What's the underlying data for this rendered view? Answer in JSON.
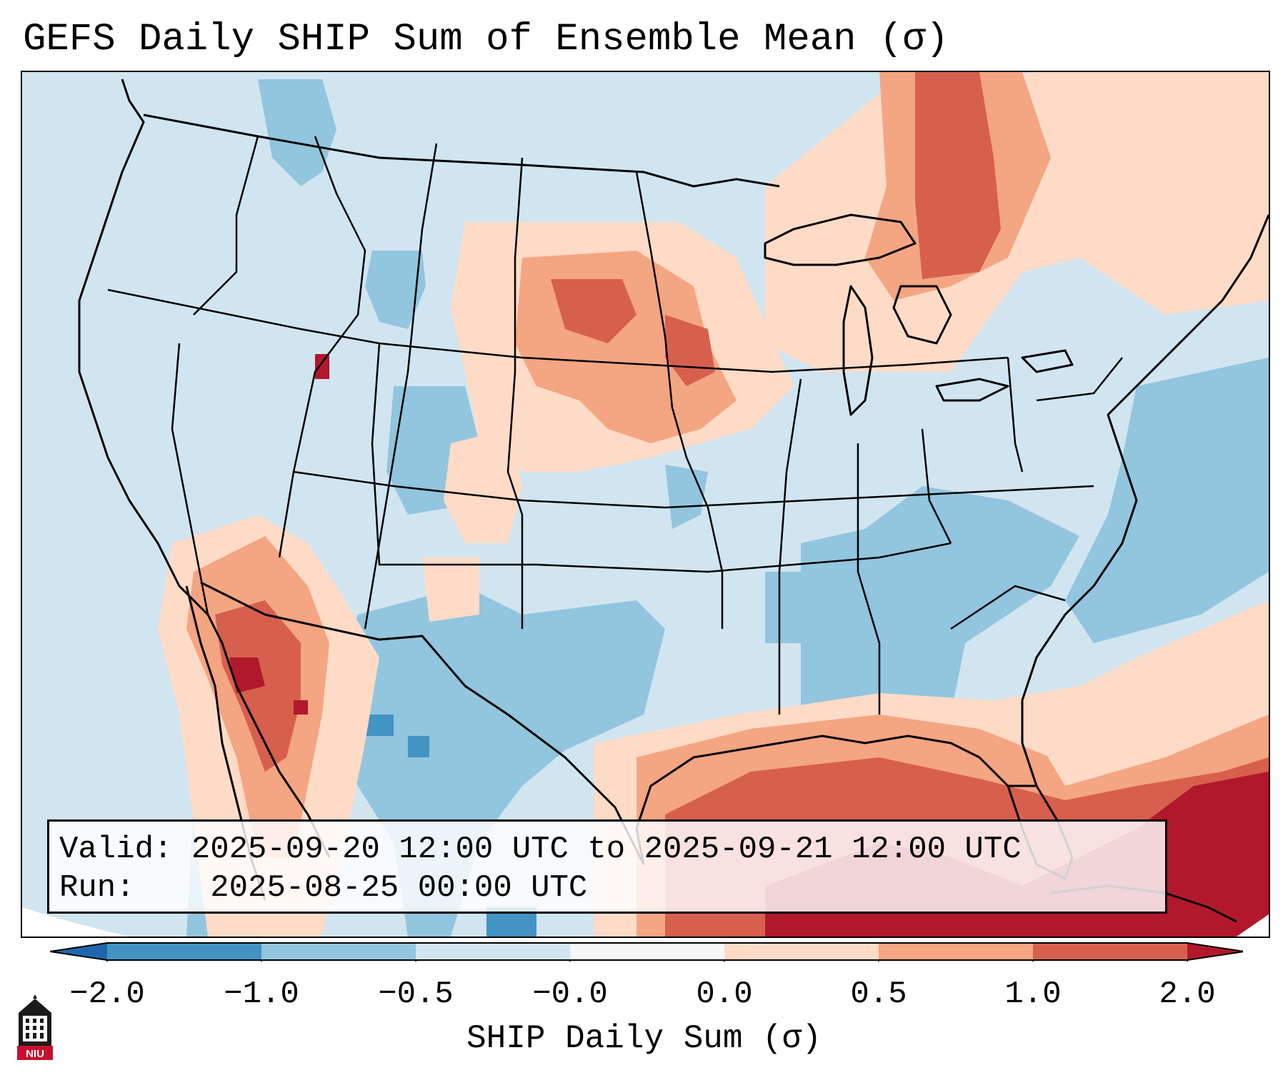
{
  "title": "GEFS Daily SHIP Sum of Ensemble Mean (σ)",
  "info": {
    "valid_label": "Valid:",
    "valid_value": "2025-09-20 12:00 UTC to 2025-09-21 12:00 UTC",
    "run_label": "Run:",
    "run_value": "2025-08-25 00:00 UTC"
  },
  "colorbar": {
    "label": "SHIP Daily Sum (σ)",
    "ticks": [
      "−2.0",
      "−1.0",
      "−0.5",
      "−0.0",
      "0.0",
      "0.5",
      "1.0",
      "2.0"
    ],
    "bins": [
      {
        "range": "< -2.0",
        "color": "#2166ac"
      },
      {
        "range": "-2.0 to -1.0",
        "color": "#4393c3"
      },
      {
        "range": "-1.0 to -0.5",
        "color": "#92c5de"
      },
      {
        "range": "-0.5 to -0.0",
        "color": "#d1e5f0"
      },
      {
        "range": "-0.0 to 0.0",
        "color": "#f7f7f7"
      },
      {
        "range": "0.0 to 0.5",
        "color": "#fddbc7"
      },
      {
        "range": "0.5 to 1.0",
        "color": "#f4a582"
      },
      {
        "range": "1.0 to 2.0",
        "color": "#d6604d"
      },
      {
        "range": "> 2.0",
        "color": "#b2182b"
      }
    ]
  },
  "regions": [
    {
      "name": "upper-midwest-positive",
      "value_range": "0.5 to 2.0"
    },
    {
      "name": "southwest-mexico-positive",
      "value_range": "0.5 to 2.0"
    },
    {
      "name": "gulf-caribbean-positive",
      "value_range": "> 2.0"
    },
    {
      "name": "atlantic-southeast-positive",
      "value_range": "0.0 to 2.0"
    },
    {
      "name": "southeast-us-negative",
      "value_range": "-1.0 to -0.5"
    },
    {
      "name": "texas-rockies-negative",
      "value_range": "-1.0 to -0.5"
    }
  ],
  "logo": {
    "text": "NIU"
  }
}
